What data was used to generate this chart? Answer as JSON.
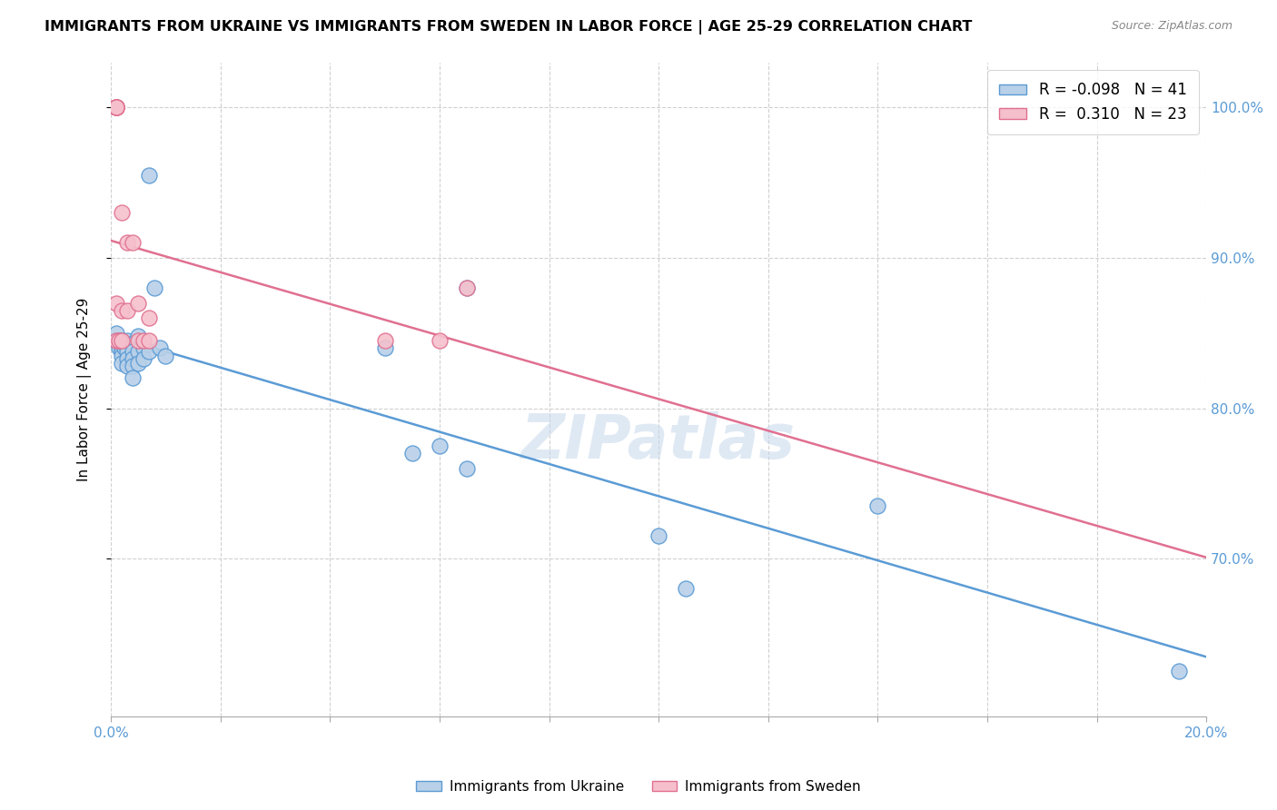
{
  "title": "IMMIGRANTS FROM UKRAINE VS IMMIGRANTS FROM SWEDEN IN LABOR FORCE | AGE 25-29 CORRELATION CHART",
  "source": "Source: ZipAtlas.com",
  "ylabel": "In Labor Force | Age 25-29",
  "right_yticks": [
    1.0,
    0.9,
    0.8,
    0.7
  ],
  "right_yticklabels": [
    "100.0%",
    "90.0%",
    "80.0%",
    "70.0%"
  ],
  "xlim": [
    0.0,
    0.2
  ],
  "ylim": [
    0.595,
    1.03
  ],
  "ukraine_color": "#b8d0e8",
  "sweden_color": "#f5c0cc",
  "ukraine_edge_color": "#5b9bd5",
  "sweden_edge_color": "#e07090",
  "ukraine_line_color": "#5b9bd5",
  "sweden_line_color": "#e07090",
  "legend_R_ukraine": "-0.098",
  "legend_N_ukraine": "41",
  "legend_R_sweden": "0.310",
  "legend_N_sweden": "23",
  "ukraine_x": [
    0.001,
    0.001,
    0.001,
    0.001,
    0.0015,
    0.0015,
    0.002,
    0.002,
    0.002,
    0.002,
    0.002,
    0.0025,
    0.003,
    0.003,
    0.003,
    0.003,
    0.003,
    0.004,
    0.004,
    0.004,
    0.004,
    0.004,
    0.005,
    0.005,
    0.005,
    0.006,
    0.006,
    0.007,
    0.007,
    0.008,
    0.009,
    0.01,
    0.05,
    0.055,
    0.06,
    0.065,
    0.065,
    0.1,
    0.105,
    0.14,
    0.195
  ],
  "ukraine_y": [
    0.845,
    0.845,
    0.845,
    0.85,
    0.845,
    0.84,
    0.845,
    0.84,
    0.838,
    0.835,
    0.83,
    0.84,
    0.845,
    0.84,
    0.838,
    0.833,
    0.828,
    0.843,
    0.838,
    0.833,
    0.828,
    0.82,
    0.848,
    0.838,
    0.83,
    0.84,
    0.833,
    0.838,
    0.955,
    0.88,
    0.84,
    0.835,
    0.84,
    0.77,
    0.775,
    0.76,
    0.88,
    0.715,
    0.68,
    0.735,
    0.625
  ],
  "sweden_x": [
    0.001,
    0.001,
    0.001,
    0.001,
    0.001,
    0.001,
    0.001,
    0.001,
    0.0015,
    0.002,
    0.002,
    0.002,
    0.003,
    0.003,
    0.004,
    0.005,
    0.005,
    0.006,
    0.007,
    0.007,
    0.05,
    0.06,
    0.065
  ],
  "sweden_y": [
    1.0,
    1.0,
    1.0,
    1.0,
    1.0,
    1.0,
    0.87,
    0.845,
    0.845,
    0.93,
    0.865,
    0.845,
    0.91,
    0.865,
    0.91,
    0.87,
    0.845,
    0.845,
    0.86,
    0.845,
    0.845,
    0.845,
    0.88
  ],
  "watermark": "ZIPatlas",
  "background_color": "#ffffff",
  "grid_color": "#d0d0d0"
}
